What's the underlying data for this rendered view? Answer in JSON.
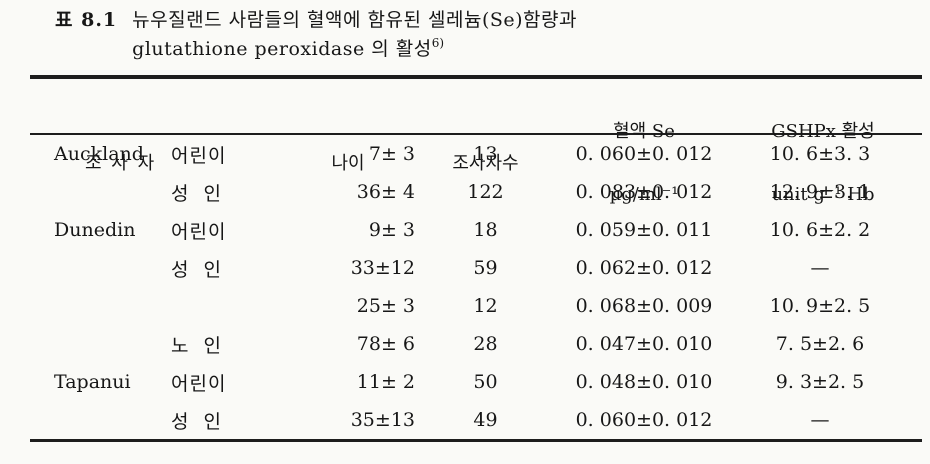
{
  "caption": {
    "label": "표 8.1",
    "line1": "뉴우질랜드 사람들의 혈액에 함유된 셀레늄(Se)함량과",
    "line2": "glutathione peroxidase 의 활성",
    "footnote_ref": "6)"
  },
  "table": {
    "headers": {
      "subject": "조 사 자",
      "age": "나이",
      "count": "조사자수",
      "blood_se_line1": "혈액 Se",
      "blood_se_line2": "µg/ml⁻¹",
      "gshpx_line1": "GSHPx 활성",
      "gshpx_line2": "unit g⁻¹ Hb"
    },
    "rows": [
      {
        "location": "Auckland",
        "group": "어린이",
        "age": "7± 3",
        "count": "13",
        "blood_se": "0. 060±0. 012",
        "gshpx": "10. 6±3. 3"
      },
      {
        "location": "",
        "group": "성  인",
        "age": "36± 4",
        "count": "122",
        "blood_se": "0. 083±0. 012",
        "gshpx": "12. 9±3. 1"
      },
      {
        "location": "Dunedin",
        "group": "어린이",
        "age": "9± 3",
        "count": "18",
        "blood_se": "0. 059±0. 011",
        "gshpx": "10. 6±2. 2"
      },
      {
        "location": "",
        "group": "성  인",
        "age": "33±12",
        "count": "59",
        "blood_se": "0. 062±0. 012",
        "gshpx": "—"
      },
      {
        "location": "",
        "group": "",
        "age": "25± 3",
        "count": "12",
        "blood_se": "0. 068±0. 009",
        "gshpx": "10. 9±2. 5"
      },
      {
        "location": "",
        "group": "노  인",
        "age": "78± 6",
        "count": "28",
        "blood_se": "0. 047±0. 010",
        "gshpx": "7. 5±2. 6"
      },
      {
        "location": "Tapanui",
        "group": "어린이",
        "age": "11± 2",
        "count": "50",
        "blood_se": "0. 048±0. 010",
        "gshpx": "9. 3±2. 5"
      },
      {
        "location": "",
        "group": "성  인",
        "age": "35±13",
        "count": "49",
        "blood_se": "0. 060±0. 012",
        "gshpx": "—"
      }
    ]
  }
}
